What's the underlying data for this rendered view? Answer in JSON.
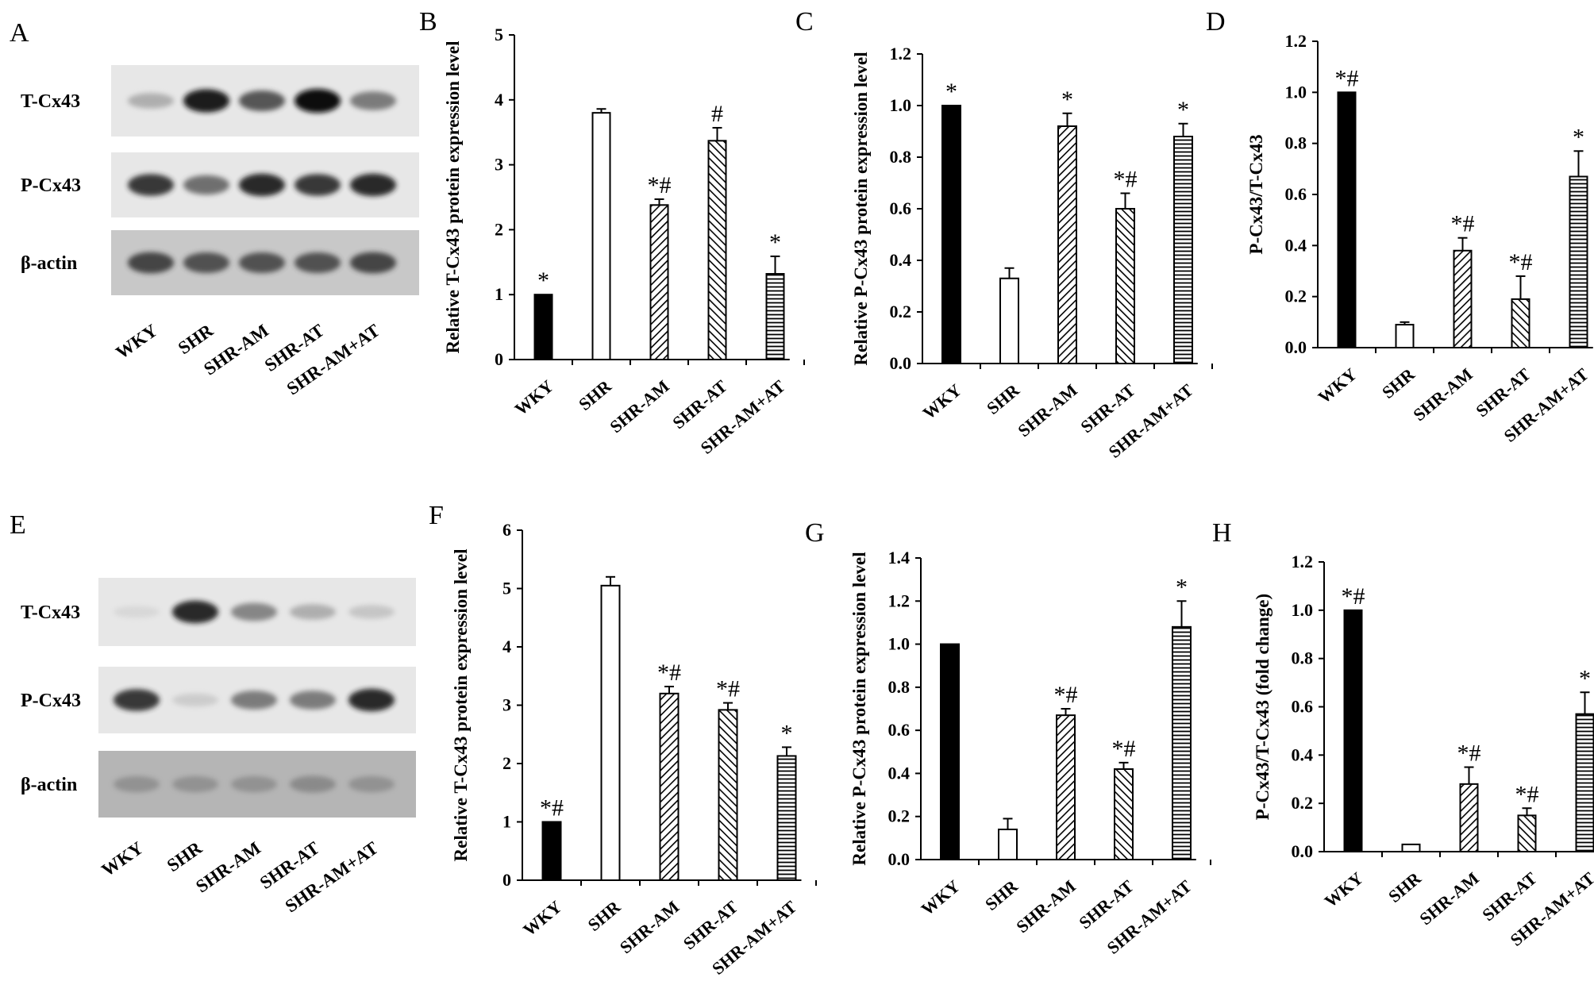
{
  "patterns": [
    "solid",
    "open",
    "diag-right",
    "diag-left",
    "horiz"
  ],
  "blots": [
    {
      "panel": "A",
      "rows": [
        "T-Cx43",
        "P-Cx43",
        "β-actin"
      ],
      "lanes": [
        "WKY",
        "SHR",
        "SHR-AM",
        "SHR-AT",
        "SHR-AM+AT"
      ],
      "intensity": [
        [
          0.35,
          0.95,
          0.75,
          1.0,
          0.6
        ],
        [
          0.85,
          0.65,
          0.9,
          0.85,
          0.9
        ],
        [
          0.8,
          0.75,
          0.75,
          0.75,
          0.8
        ]
      ]
    },
    {
      "panel": "E",
      "rows": [
        "T-Cx43",
        "P-Cx43",
        "β-actin"
      ],
      "lanes": [
        "WKY",
        "SHR",
        "SHR-AM",
        "SHR-AT",
        "SHR-AM+AT"
      ],
      "intensity": [
        [
          0.05,
          0.9,
          0.55,
          0.35,
          0.2
        ],
        [
          0.85,
          0.15,
          0.6,
          0.6,
          0.9
        ],
        [
          0.4,
          0.4,
          0.4,
          0.45,
          0.4
        ]
      ]
    }
  ],
  "chart_data": [
    {
      "panel": "B",
      "type": "bar",
      "categories": [
        "WKY",
        "SHR",
        "SHR-AM",
        "SHR-AT",
        "SHR-AM+AT"
      ],
      "values": [
        1.0,
        3.8,
        2.38,
        3.37,
        1.32
      ],
      "errors": [
        0,
        0.06,
        0.09,
        0.2,
        0.27
      ],
      "annotations": [
        "*",
        "",
        "*#",
        "#",
        "*"
      ],
      "ylabel": "Relative T-Cx43 protein expression level",
      "ylim": [
        0,
        5
      ],
      "yticks": [
        "0",
        "1",
        "2",
        "3",
        "4",
        "5"
      ]
    },
    {
      "panel": "C",
      "type": "bar",
      "categories": [
        "WKY",
        "SHR",
        "SHR-AM",
        "SHR-AT",
        "SHR-AM+AT"
      ],
      "values": [
        1.0,
        0.33,
        0.92,
        0.6,
        0.88
      ],
      "errors": [
        0,
        0.04,
        0.05,
        0.06,
        0.05
      ],
      "annotations": [
        "*",
        "",
        "*",
        "*#",
        "*"
      ],
      "ylabel": "Relative P-Cx43 protein expression level",
      "ylim": [
        0,
        1.2
      ],
      "yticks": [
        "0.0",
        "0.2",
        "0.4",
        "0.6",
        "0.8",
        "1.0",
        "1.2"
      ]
    },
    {
      "panel": "D",
      "type": "bar",
      "categories": [
        "WKY",
        "SHR",
        "SHR-AM",
        "SHR-AT",
        "SHR-AM+AT"
      ],
      "values": [
        1.0,
        0.09,
        0.38,
        0.19,
        0.67
      ],
      "errors": [
        0,
        0.01,
        0.05,
        0.09,
        0.1
      ],
      "annotations": [
        "*#",
        "",
        "*#",
        "*#",
        "*"
      ],
      "ylabel": "P-Cx43/T-Cx43",
      "ylim": [
        0,
        1.2
      ],
      "yticks": [
        "0.0",
        "0.2",
        "0.4",
        "0.6",
        "0.8",
        "1.0",
        "1.2"
      ]
    },
    {
      "panel": "F",
      "type": "bar",
      "categories": [
        "WKY",
        "SHR",
        "SHR-AM",
        "SHR-AT",
        "SHR-AM+AT"
      ],
      "values": [
        1.0,
        5.05,
        3.2,
        2.92,
        2.13
      ],
      "errors": [
        0,
        0.15,
        0.12,
        0.12,
        0.15
      ],
      "annotations": [
        "*#",
        "",
        "*#",
        "*#",
        "*"
      ],
      "ylabel": "Relative T-Cx43 protein expression level",
      "ylim": [
        0,
        6
      ],
      "yticks": [
        "0",
        "1",
        "2",
        "3",
        "4",
        "5",
        "6"
      ]
    },
    {
      "panel": "G",
      "type": "bar",
      "categories": [
        "WKY",
        "SHR",
        "SHR-AM",
        "SHR-AT",
        "SHR-AM+AT"
      ],
      "values": [
        1.0,
        0.14,
        0.67,
        0.42,
        1.08
      ],
      "errors": [
        0,
        0.05,
        0.03,
        0.03,
        0.12
      ],
      "annotations": [
        "",
        "",
        "*#",
        "*#",
        "*"
      ],
      "ylabel": "Relative P-Cx43 protein expression level",
      "ylim": [
        0,
        1.4
      ],
      "yticks": [
        "0.0",
        "0.2",
        "0.4",
        "0.6",
        "0.8",
        "1.0",
        "1.2",
        "1.4"
      ]
    },
    {
      "panel": "H",
      "type": "bar",
      "categories": [
        "WKY",
        "SHR",
        "SHR-AM",
        "SHR-AT",
        "SHR-AM+AT"
      ],
      "values": [
        1.0,
        0.03,
        0.28,
        0.15,
        0.57
      ],
      "errors": [
        0,
        0.0,
        0.07,
        0.03,
        0.09
      ],
      "annotations": [
        "*#",
        "",
        "*#",
        "*#",
        "*"
      ],
      "ylabel": "P-Cx43/T-Cx43 (fold change)",
      "ylim": [
        0,
        1.2
      ],
      "yticks": [
        "0.0",
        "0.2",
        "0.4",
        "0.6",
        "0.8",
        "1.0",
        "1.2"
      ]
    }
  ]
}
